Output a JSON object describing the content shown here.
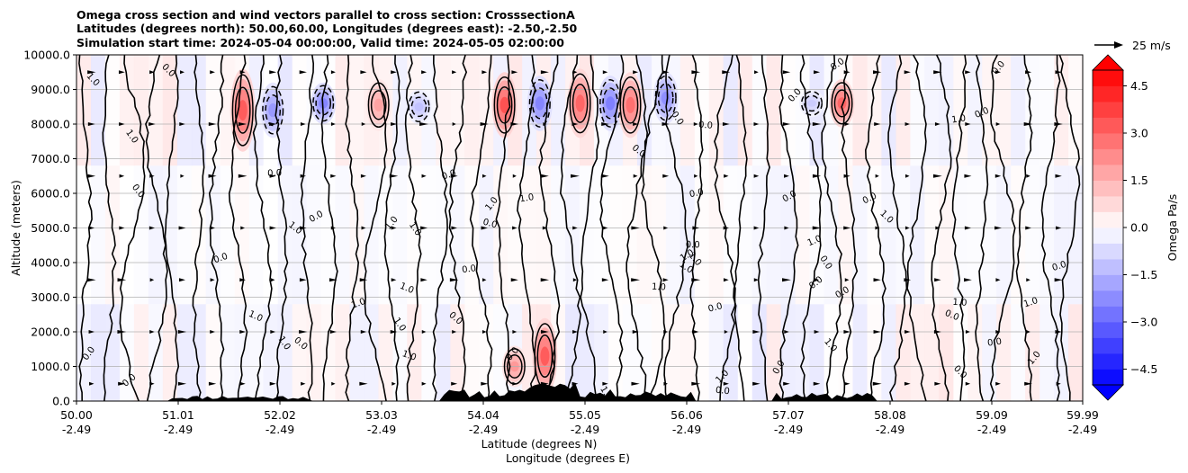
{
  "chart_data": {
    "type": "heatmap",
    "title_lines": [
      "Omega cross section and wind vectors parallel to cross section: CrosssectionA",
      "Latitudes (degrees north): 50.00,60.00, Longitudes (degrees east): -2.50,-2.50",
      "Simulation start time: 2024-05-04 00:00:00, Valid time: 2024-05-05 02:00:00"
    ],
    "ylabel": "Altitude (meters)",
    "xlabel_lines": [
      "Latitude (degrees N)",
      "Longitude (degrees E)"
    ],
    "xlim": [
      50.0,
      59.99
    ],
    "ylim": [
      0,
      10000
    ],
    "grid": true,
    "x_ticks": [
      {
        "lat": "50.00",
        "lon": "-2.49",
        "value": 50.0
      },
      {
        "lat": "51.01",
        "lon": "-2.49",
        "value": 51.01
      },
      {
        "lat": "52.02",
        "lon": "-2.49",
        "value": 52.02
      },
      {
        "lat": "53.03",
        "lon": "-2.49",
        "value": 53.03
      },
      {
        "lat": "54.04",
        "lon": "-2.49",
        "value": 54.04
      },
      {
        "lat": "55.05",
        "lon": "-2.49",
        "value": 55.05
      },
      {
        "lat": "56.06",
        "lon": "-2.49",
        "value": 56.06
      },
      {
        "lat": "57.07",
        "lon": "-2.49",
        "value": 57.07
      },
      {
        "lat": "58.08",
        "lon": "-2.49",
        "value": 58.08
      },
      {
        "lat": "59.09",
        "lon": "-2.49",
        "value": 59.09
      },
      {
        "lat": "59.99",
        "lon": "-2.49",
        "value": 59.99
      }
    ],
    "y_ticks": [
      {
        "label": "0.0",
        "value": 0
      },
      {
        "label": "1000.0",
        "value": 1000
      },
      {
        "label": "2000.0",
        "value": 2000
      },
      {
        "label": "3000.0",
        "value": 3000
      },
      {
        "label": "4000.0",
        "value": 4000
      },
      {
        "label": "5000.0",
        "value": 5000
      },
      {
        "label": "6000.0",
        "value": 6000
      },
      {
        "label": "7000.0",
        "value": 7000
      },
      {
        "label": "8000.0",
        "value": 8000
      },
      {
        "label": "9000.0",
        "value": 9000
      },
      {
        "label": "10000.0",
        "value": 10000
      }
    ],
    "colorbar": {
      "label": "Omega Pa/s",
      "min": -5.0,
      "max": 5.0,
      "extend": "both",
      "ticks": [
        {
          "label": "4.5",
          "value": 4.5
        },
        {
          "label": "3.0",
          "value": 3.0
        },
        {
          "label": "1.5",
          "value": 1.5
        },
        {
          "label": "0.0",
          "value": 0.0
        },
        {
          "label": "−1.5",
          "value": -1.5
        },
        {
          "label": "−3.0",
          "value": -3.0
        },
        {
          "label": "−4.5",
          "value": -4.5
        }
      ]
    },
    "quiver_key": {
      "label": "25 m/s",
      "value": 25
    },
    "contour_labels": [
      "0.0",
      "1.0",
      "-1.0"
    ],
    "features": [
      {
        "lat": 51.65,
        "z_bottom": 7200,
        "z_top": 9600,
        "peak": 3.2
      },
      {
        "lat": 51.95,
        "z_bottom": 7600,
        "z_top": 9200,
        "peak": -2.0
      },
      {
        "lat": 52.45,
        "z_bottom": 8000,
        "z_top": 9200,
        "peak": -2.4
      },
      {
        "lat": 53.0,
        "z_bottom": 7800,
        "z_top": 9300,
        "peak": 1.8
      },
      {
        "lat": 53.4,
        "z_bottom": 8000,
        "z_top": 9000,
        "peak": -1.2
      },
      {
        "lat": 54.25,
        "z_bottom": 7600,
        "z_top": 9500,
        "peak": 3.4
      },
      {
        "lat": 54.6,
        "z_bottom": 7800,
        "z_top": 9400,
        "peak": -2.4
      },
      {
        "lat": 55.0,
        "z_bottom": 7600,
        "z_top": 9600,
        "peak": 3.0
      },
      {
        "lat": 55.3,
        "z_bottom": 7800,
        "z_top": 9400,
        "peak": -2.5
      },
      {
        "lat": 55.5,
        "z_bottom": 7600,
        "z_top": 9500,
        "peak": 2.8
      },
      {
        "lat": 55.85,
        "z_bottom": 8000,
        "z_top": 9500,
        "peak": -2.2
      },
      {
        "lat": 57.6,
        "z_bottom": 7900,
        "z_top": 9300,
        "peak": 3.0
      },
      {
        "lat": 57.3,
        "z_bottom": 8200,
        "z_top": 9000,
        "peak": -1.0
      },
      {
        "lat": 54.65,
        "z_bottom": 200,
        "z_top": 2400,
        "peak": 3.2
      },
      {
        "lat": 54.35,
        "z_bottom": 400,
        "z_top": 1600,
        "peak": 2.0
      }
    ]
  }
}
